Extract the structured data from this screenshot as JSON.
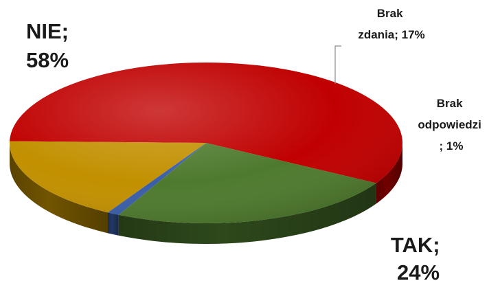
{
  "chart_data": {
    "type": "pie",
    "title": "",
    "slices": [
      {
        "category": "NIE",
        "value": 58,
        "label": "NIE; 58%",
        "color": "#c00000"
      },
      {
        "category": "Brak zdania",
        "value": 17,
        "label": "Brak zdania; 17%",
        "color": "#c29000"
      },
      {
        "category": "Brak odpowiedzi",
        "value": 1,
        "label": "Brak odpowiedzi; 1%",
        "color": "#3a5ea8"
      },
      {
        "category": "TAK",
        "value": 24,
        "label": "TAK; 24%",
        "color": "#4e7a2e"
      }
    ]
  },
  "labels": {
    "nie": [
      "NIE;",
      "58%"
    ],
    "brak_zdania": [
      "Brak",
      "zdania; 17%"
    ],
    "brak_odpowiedzi": [
      "Brak",
      "odpowiedzi",
      "; 1%"
    ],
    "tak": [
      "TAK;",
      "24%"
    ]
  }
}
